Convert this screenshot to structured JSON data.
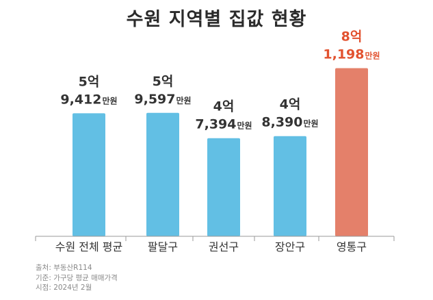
{
  "title": "수원 지역별 집값 현황",
  "chart_data": {
    "type": "bar",
    "categories": [
      "수원 전체 평균",
      "팔달구",
      "권선구",
      "장안구",
      "영통구"
    ],
    "values": [
      59412,
      59597,
      47394,
      48390,
      81198
    ],
    "value_unit": "만원",
    "data_labels": [
      {
        "top": "5억",
        "main": "9,412",
        "unit": "만원"
      },
      {
        "top": "5억",
        "main": "9,597",
        "unit": "만원"
      },
      {
        "top": "4억",
        "main": "7,394",
        "unit": "만원"
      },
      {
        "top": "4억",
        "main": "8,390",
        "unit": "만원"
      },
      {
        "top": "8억",
        "main": "1,198",
        "unit": "만원"
      }
    ],
    "ylim": [
      0,
      85000
    ],
    "grid": false,
    "colors": {
      "default": "#62bfe4",
      "highlight": "#e4806a",
      "highlight_index": 4,
      "label_default": "#333333",
      "label_highlight": "#e2522f",
      "axis": "#999999"
    }
  },
  "footer": {
    "source": "출처: 부동산R114",
    "basis": "기준: 가구당 평균 매매가격",
    "date": "시점: 2024년 2월"
  }
}
